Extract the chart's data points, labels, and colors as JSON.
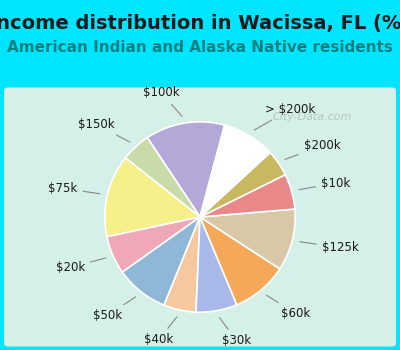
{
  "title": "Income distribution in Wacissa, FL (%)",
  "subtitle": "American Indian and Alaska Native residents",
  "watermark": "City-Data.com",
  "background_color": "#00e5ff",
  "chart_bg_start": "#e8f5e9",
  "chart_bg_end": "#e0f7fa",
  "labels": [
    "$100k",
    "$150k",
    "$75k",
    "$20k",
    "$50k",
    "$40k",
    "$30k",
    "$60k",
    "$125k",
    "$10k",
    "$200k",
    "> $200k"
  ],
  "values": [
    13.5,
    5.0,
    14.0,
    6.5,
    9.0,
    5.5,
    7.0,
    9.5,
    10.5,
    6.0,
    4.5,
    9.0
  ],
  "colors": [
    "#b3a8d8",
    "#c8dba8",
    "#f5f08a",
    "#f0a8b8",
    "#8fb8d8",
    "#f5c8a0",
    "#a8b8e8",
    "#f5a858",
    "#d8c8a8",
    "#e88888",
    "#c8b860",
    "#ffffff"
  ],
  "title_fontsize": 14,
  "subtitle_fontsize": 11,
  "title_color": "#1a1a1a",
  "subtitle_color": "#008080",
  "label_fontsize": 8.5,
  "startangle": 75
}
